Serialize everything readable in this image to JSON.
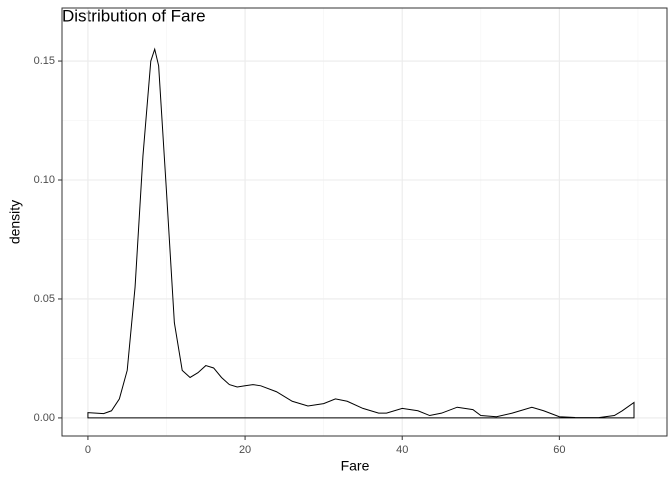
{
  "chart_data": {
    "type": "density",
    "title": "Distribution of Fare",
    "x_label": "Fare",
    "y_label": "density",
    "x": [
      0,
      1,
      2,
      3,
      4,
      5,
      6,
      7,
      8,
      8.5,
      9,
      10,
      11,
      12,
      13,
      14,
      15,
      16,
      17,
      18,
      19,
      20,
      21,
      22,
      24,
      26,
      28,
      30,
      31.5,
      33,
      35,
      37,
      38,
      40,
      42,
      43.5,
      45,
      47,
      49,
      50,
      52,
      54,
      56.5,
      58,
      60,
      62,
      65,
      67,
      68,
      69.5
    ],
    "values": [
      0.0022,
      0.002,
      0.0018,
      0.003,
      0.008,
      0.02,
      0.055,
      0.11,
      0.15,
      0.155,
      0.148,
      0.095,
      0.04,
      0.02,
      0.017,
      0.019,
      0.022,
      0.021,
      0.017,
      0.014,
      0.013,
      0.0135,
      0.014,
      0.0135,
      0.011,
      0.007,
      0.005,
      0.006,
      0.008,
      0.007,
      0.004,
      0.002,
      0.002,
      0.004,
      0.003,
      0.001,
      0.002,
      0.0045,
      0.0035,
      0.001,
      0.0005,
      0.002,
      0.0045,
      0.003,
      0.0005,
      0.0002,
      0.0001,
      0.001,
      0.003,
      0.0065
    ],
    "color": "#000000",
    "xlim": [
      -3.3,
      73.7
    ],
    "xticks": [
      0,
      20,
      40,
      60
    ],
    "ylim": [
      -0.0076,
      0.1723
    ],
    "yticks": [
      {
        "value": 0,
        "label": "0.00"
      },
      {
        "value": 0.05,
        "label": "0.05"
      },
      {
        "value": 0.1,
        "label": "0.10"
      },
      {
        "value": 0.15,
        "label": "0.15"
      }
    ],
    "grid": true
  }
}
